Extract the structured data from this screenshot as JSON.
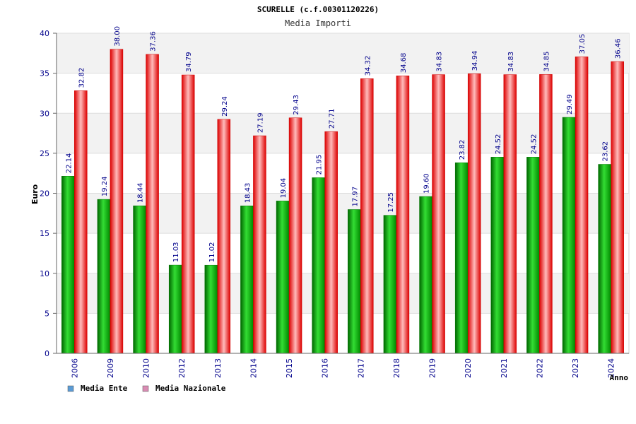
{
  "chart_data": {
    "type": "bar",
    "title": "SCURELLE (c.f.00301120226)",
    "subtitle": "Media Importi",
    "xlabel": "Anno",
    "ylabel": "Euro",
    "ylim": [
      0,
      40
    ],
    "yticks": [
      0,
      5,
      10,
      15,
      20,
      25,
      30,
      35,
      40
    ],
    "grid": true,
    "legend_position": "bottom-left",
    "categories": [
      "2006",
      "2009",
      "2010",
      "2012",
      "2013",
      "2014",
      "2015",
      "2016",
      "2017",
      "2018",
      "2019",
      "2020",
      "2021",
      "2022",
      "2023",
      "2024"
    ],
    "series": [
      {
        "name": "Media Ente",
        "color": "#00aa00",
        "legend_color": "#5b9bd5",
        "values": [
          22.14,
          19.24,
          18.44,
          11.03,
          11.02,
          18.43,
          19.04,
          21.95,
          17.97,
          17.25,
          19.6,
          23.82,
          24.52,
          24.52,
          29.49,
          23.62
        ],
        "labels": [
          "22.14",
          "19.24",
          "18.44",
          "11.03",
          "11.02",
          "18.43",
          "19.04",
          "21.95",
          "17.97",
          "17.25",
          "19.60",
          "23.82",
          "24.52",
          "24.52",
          "29.49",
          "23.62"
        ]
      },
      {
        "name": "Media Nazionale",
        "color": "#ee1111",
        "legend_color": "#d98cb3",
        "values": [
          32.82,
          38.0,
          37.36,
          34.79,
          29.24,
          27.19,
          29.43,
          27.71,
          34.32,
          34.68,
          34.83,
          34.94,
          34.83,
          34.85,
          37.05,
          36.46
        ],
        "labels": [
          "32.82",
          "38.00",
          "37.36",
          "34.79",
          "29.24",
          "27.19",
          "29.43",
          "27.71",
          "34.32",
          "34.68",
          "34.83",
          "34.94",
          "34.83",
          "34.85",
          "37.05",
          "36.46"
        ]
      }
    ]
  }
}
